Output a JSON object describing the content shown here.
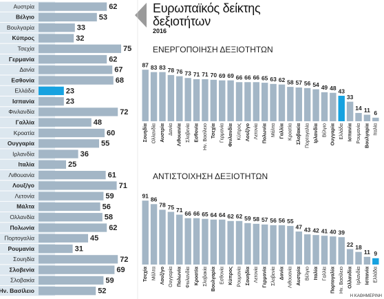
{
  "header": {
    "title": "Ευρωπαϊκός δείκτης δεξιοτήτων",
    "year": "2016",
    "credit": "Η ΚΑΘΗΜΕΡΙΝΗ"
  },
  "chart_data": [
    {
      "type": "bar",
      "orientation": "horizontal",
      "color": "#a3b6c6",
      "highlight_color": "#17a2e0",
      "highlight_index": 8,
      "categories": [
        "Αυστρία",
        "Βέλγιο",
        "Βουλγαρία",
        "Κύπρος",
        "Τσεχία",
        "Γερμανία",
        "Δανία",
        "Εσθονία",
        "Ελλάδα",
        "Ισπανία",
        "Φινλανδία",
        "Γαλλία",
        "Κροατία",
        "Ουγγαρία",
        "Ιρλανδία",
        "Ιταλία",
        "Λιθουανία",
        "Λουξ/γο",
        "Λετονία",
        "Μάλτα",
        "Ολλανδία",
        "Πολωνία",
        "Πορτογαλία",
        "Ρουμανία",
        "Σουηδία",
        "Σλοβενία",
        "Σλοβακία",
        "Ην. Βασίλειο"
      ],
      "values": [
        62,
        53,
        33,
        32,
        75,
        62,
        67,
        68,
        23,
        23,
        72,
        48,
        60,
        55,
        36,
        25,
        61,
        71,
        59,
        56,
        58,
        62,
        45,
        31,
        72,
        69,
        59,
        52
      ]
    },
    {
      "type": "bar",
      "orientation": "vertical",
      "title": "ΕΝΕΡΓΟΠΟΙΗΣΗ ΔΕΞΙΟΤΗΤΩΝ",
      "color": "#a3b6c6",
      "highlight_color": "#17a2e0",
      "highlight_index": 23,
      "categories": [
        "Σουηδία",
        "Ολλανδία",
        "Αυστρία",
        "Δανία",
        "Λιθουανία",
        "Σλοβενία",
        "Εσθονία",
        "Ην. Βασίλειο",
        "Τσεχία",
        "Γερμανία",
        "Φινλανδία",
        "Κύπρος",
        "Λουξ/γο",
        "Λετονία",
        "Πολωνία",
        "Μάλτα",
        "Γαλλία",
        "Κροατία",
        "Σλοβακία",
        "Πορτογαλία",
        "Ιρλανδία",
        "Βέλγιο",
        "Ουγγαρία",
        "Ελλάδα",
        "Ισπανία",
        "Ρουμανία",
        "Βουλγαρία",
        "Ιταλία"
      ],
      "values": [
        87,
        83,
        83,
        78,
        76,
        73,
        71,
        71,
        70,
        69,
        69,
        66,
        66,
        66,
        65,
        63,
        62,
        58,
        57,
        56,
        54,
        49,
        48,
        43,
        33,
        14,
        11,
        6
      ]
    },
    {
      "type": "bar",
      "orientation": "vertical",
      "title": "ΑΝΤΙΣΤΟΙΧΗΣΗ ΔΕΞΙΟΤΗΤΩΝ",
      "color": "#a3b6c6",
      "highlight_color": "#17a2e0",
      "highlight_index": 27,
      "categories": [
        "Τσεχία",
        "Μάλτα",
        "Λουξ/γο",
        "Ουγγαρία",
        "Πολωνία",
        "Φινλανδία",
        "Κροατία",
        "Σλοβακία",
        "Βουλγαρία",
        "Εσθονία",
        "Κύπρος",
        "Ρουμανία",
        "Σουηδία",
        "Λετονία",
        "Γερμανία",
        "Σλοβενία",
        "Δανία",
        "Λιθουανία",
        "Αυστρία",
        "Βέλγιο",
        "Ιταλία",
        "Γαλλία",
        "Πορτογαλία",
        "Ην. Βασίλειο",
        "Ολλανδία",
        "Ιρλανδία",
        "Ισπανία",
        "Ελλάδα"
      ],
      "values": [
        91,
        86,
        78,
        75,
        71,
        66,
        66,
        65,
        64,
        64,
        62,
        62,
        59,
        58,
        57,
        56,
        56,
        55,
        47,
        43,
        42,
        41,
        40,
        39,
        22,
        18,
        11,
        9
      ]
    }
  ]
}
